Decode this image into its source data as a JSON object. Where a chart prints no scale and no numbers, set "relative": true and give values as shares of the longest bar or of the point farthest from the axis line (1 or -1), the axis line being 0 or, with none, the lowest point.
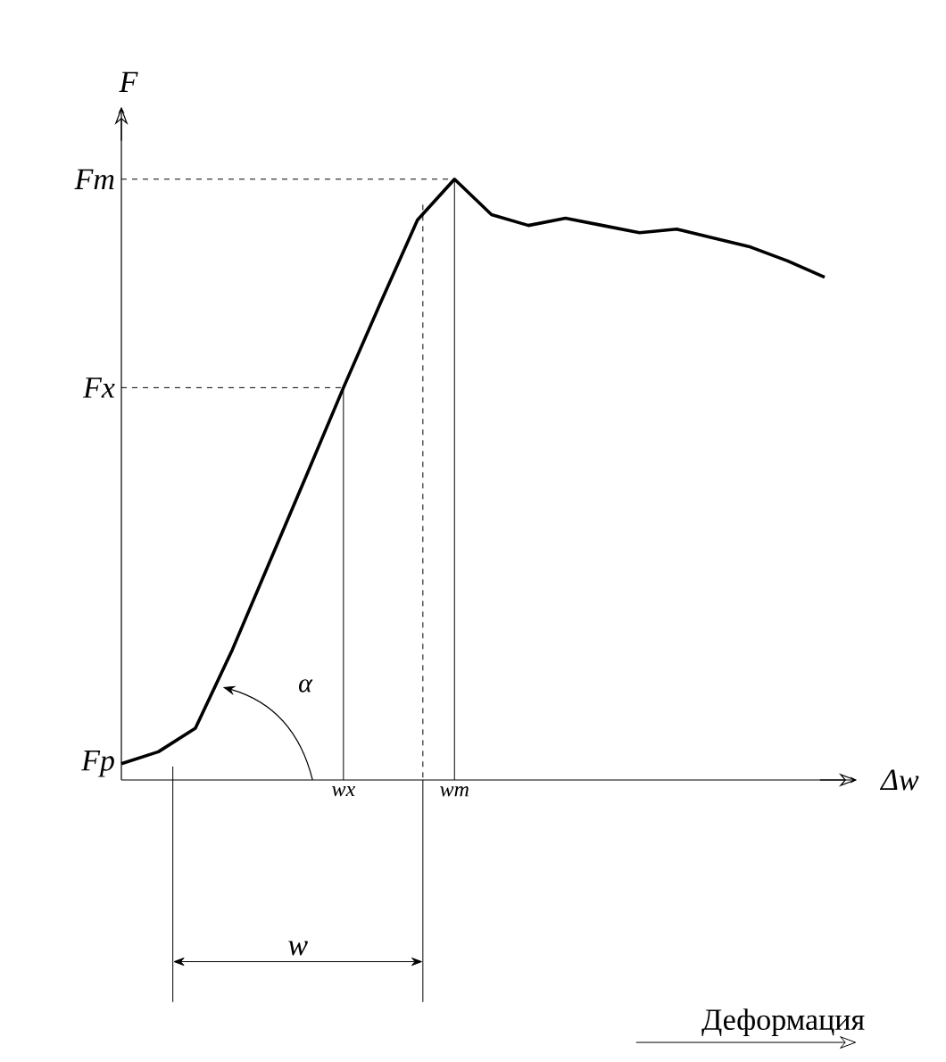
{
  "chart_data": {
    "type": "line",
    "relative": true,
    "ylabel": "F",
    "xlabel": "Δw",
    "tick_labels": false,
    "marker": "none",
    "line_style": "solid",
    "categories": [
      null,
      null,
      null,
      null,
      null,
      null,
      null,
      null,
      null,
      null,
      null,
      null,
      null,
      null,
      null,
      null,
      null,
      null,
      null,
      null
    ],
    "series": [
      {
        "color": "#000000",
        "values": [
          0.027,
          0.047,
          0.086,
          0.217,
          0.362,
          0.507,
          0.653,
          0.794,
          0.932,
          1,
          0.941,
          0.923,
          0.935,
          0.923,
          0.911,
          0.917,
          0.902,
          0.887,
          0.864,
          0.837
        ]
      }
    ],
    "ref_lines": [
      {
        "axis": "y",
        "value": 1,
        "label": "Fm",
        "line_style": "dashed"
      },
      {
        "axis": "y",
        "value": 0.653,
        "label": "Fx",
        "line_style": "dashed"
      }
    ],
    "annotations": [
      "α",
      "w",
      "Деформация",
      "wx",
      "wm",
      "Fp"
    ]
  }
}
